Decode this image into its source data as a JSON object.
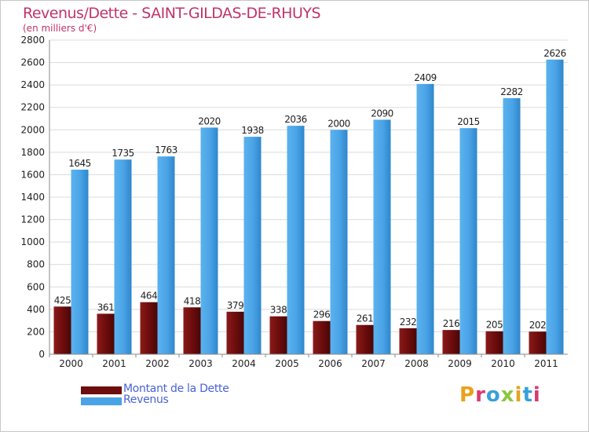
{
  "title": "Revenus/Dette - SAINT-GILDAS-DE-RHUYS",
  "subtitle": "(en milliers d'€)",
  "colors": {
    "title": "#c0346a",
    "legend_text": "#4a62d8",
    "dette": "#6e0d0d",
    "revenus": "#4aa3e6",
    "grid": "#dcdcdc"
  },
  "legend": {
    "dette_label": "Montant de la Dette",
    "revenus_label": "Revenus"
  },
  "logo": {
    "text": "Proxiti"
  },
  "chart_data": {
    "type": "bar",
    "categories": [
      "2000",
      "2001",
      "2002",
      "2003",
      "2004",
      "2005",
      "2006",
      "2007",
      "2008",
      "2009",
      "2010",
      "2011"
    ],
    "series": [
      {
        "name": "Montant de la Dette",
        "values": [
          425,
          361,
          464,
          418,
          379,
          338,
          296,
          261,
          232,
          216,
          205,
          202
        ]
      },
      {
        "name": "Revenus",
        "values": [
          1645,
          1735,
          1763,
          2020,
          1938,
          2036,
          2000,
          2090,
          2409,
          2015,
          2282,
          2626
        ]
      }
    ],
    "y_ticks": [
      "0",
      "200",
      "400",
      "600",
      "800",
      "1000",
      "1200",
      "1400",
      "1600",
      "1800",
      "2000",
      "2200",
      "2400",
      "2600",
      "2800"
    ],
    "ylim": [
      0,
      2800
    ],
    "grid": true,
    "legend_position": "bottom-left"
  }
}
